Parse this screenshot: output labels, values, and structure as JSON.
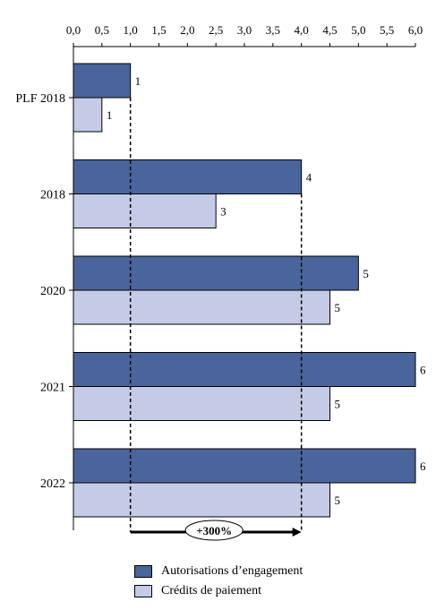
{
  "chart_data": {
    "type": "bar",
    "orientation": "horizontal",
    "categories": [
      "PLF 2018",
      "2018",
      "2020",
      "2021",
      "2022"
    ],
    "series": [
      {
        "name": "Autorisations d’engagement",
        "values": [
          1.0,
          4.0,
          5.0,
          6.0,
          6.0
        ],
        "labels": [
          "1",
          "4",
          "5",
          "6",
          "6"
        ],
        "color": "#4a659c"
      },
      {
        "name": "Crédits de paiement",
        "values": [
          0.5,
          2.5,
          4.5,
          4.5,
          4.5
        ],
        "labels": [
          "1",
          "3",
          "5",
          "5",
          "5"
        ],
        "color": "#c5cbe6"
      }
    ],
    "xlim": [
      0,
      6
    ],
    "ticks": [
      "0,0",
      "0,5",
      "1,0",
      "1,5",
      "2,0",
      "2,5",
      "3,0",
      "3,5",
      "4,0",
      "4,5",
      "5,0",
      "5,5",
      "6,0"
    ],
    "axis_position": "top",
    "grid": false,
    "legend": "bottom",
    "annotation": {
      "text": "+300%",
      "from": 1.0,
      "to": 4.0,
      "style": "dashed guides with arrow"
    }
  }
}
